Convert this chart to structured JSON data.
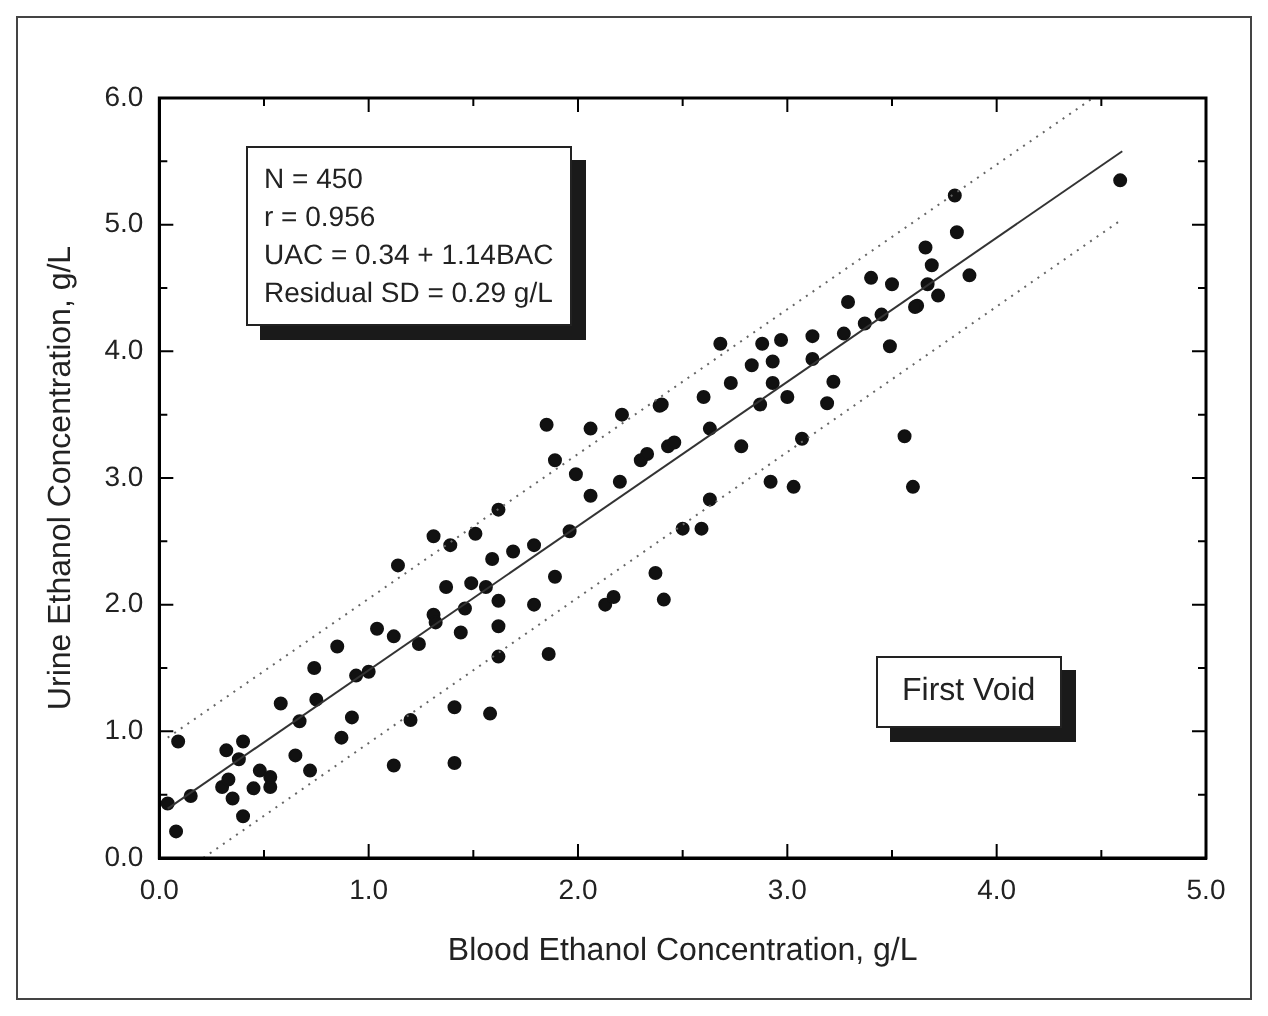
{
  "chart_data": {
    "type": "scatter",
    "xlabel": "Blood Ethanol Concentration, g/L",
    "ylabel": "Urine Ethanol Concentration, g/L",
    "annotations": [
      "N = 450\nr = 0.956\nUAC = 0.34 + 1.14BAC\nResidual SD = 0.29 g/L",
      "First Void"
    ],
    "xlim": [
      0,
      5
    ],
    "ylim": [
      0,
      6
    ],
    "xticks": [
      {
        "value": 0,
        "label": "0.0"
      },
      {
        "value": 0.5,
        "label": null
      },
      {
        "value": 1,
        "label": "1.0"
      },
      {
        "value": 1.5,
        "label": null
      },
      {
        "value": 2,
        "label": "2.0"
      },
      {
        "value": 2.5,
        "label": null
      },
      {
        "value": 3,
        "label": "3.0"
      },
      {
        "value": 3.5,
        "label": null
      },
      {
        "value": 4,
        "label": "4.0"
      },
      {
        "value": 4.5,
        "label": null
      },
      {
        "value": 5,
        "label": "5.0"
      }
    ],
    "yticks": [
      {
        "value": 0,
        "label": "0.0"
      },
      {
        "value": 0.5,
        "label": null
      },
      {
        "value": 1,
        "label": "1.0"
      },
      {
        "value": 1.5,
        "label": null
      },
      {
        "value": 2,
        "label": "2.0"
      },
      {
        "value": 2.5,
        "label": null
      },
      {
        "value": 3,
        "label": "3.0"
      },
      {
        "value": 3.5,
        "label": null
      },
      {
        "value": 4,
        "label": "4.0"
      },
      {
        "value": 4.5,
        "label": null
      },
      {
        "value": 5,
        "label": "5.0"
      },
      {
        "value": 5.5,
        "label": null
      },
      {
        "value": 6,
        "label": "6.0"
      }
    ],
    "series": [
      {
        "type": "scatter",
        "marker": "circle",
        "color": "#111111",
        "x": [
          0.04,
          0.08,
          0.09,
          0.15,
          0.32,
          0.3,
          0.35,
          0.4,
          0.4,
          0.48,
          0.53,
          0.53,
          0.58,
          0.65,
          0.67,
          0.74,
          0.72,
          0.75,
          0.87,
          0.85,
          0.92,
          0.94,
          1.04,
          1.0,
          1.12,
          1.14,
          1.2,
          1.24,
          1.31,
          1.39,
          1.41,
          1.41,
          1.31,
          1.37,
          1.44,
          1.51,
          1.58,
          1.59,
          1.62,
          1.85,
          2.06,
          2.21,
          2.39,
          1.62,
          1.89,
          1.79,
          1.86,
          1.62,
          1.62,
          2.13,
          2.17,
          2.37,
          2.41,
          1.89,
          1.49,
          1.79,
          1.96,
          2.06,
          2.2,
          2.3,
          2.43,
          1.99,
          1.46,
          1.32,
          1.12,
          1.69,
          1.56,
          2.68,
          2.88,
          2.97,
          3.12,
          3.29,
          3.4,
          3.5,
          3.66,
          3.67,
          3.62,
          3.49,
          3.27,
          3.37,
          3.22,
          3.19,
          3.07,
          2.92,
          3.03,
          3.56,
          3.6,
          2.5,
          2.59,
          2.63,
          2.78,
          2.87,
          2.93,
          3.0,
          2.73,
          2.6,
          2.4,
          2.63,
          2.46,
          2.33,
          2.83,
          2.93,
          3.12,
          3.8,
          3.81,
          4.59,
          3.69,
          3.87,
          3.72,
          3.61,
          3.45,
          0.33,
          0.38,
          0.45
        ],
        "values": [
          0.43,
          0.21,
          0.92,
          0.49,
          0.85,
          0.56,
          0.47,
          0.33,
          0.92,
          0.69,
          0.56,
          0.64,
          1.22,
          0.81,
          1.08,
          1.5,
          0.69,
          1.25,
          0.95,
          1.67,
          1.11,
          1.44,
          1.81,
          1.47,
          0.73,
          2.31,
          1.09,
          1.69,
          2.54,
          2.47,
          0.75,
          1.19,
          1.92,
          2.14,
          1.78,
          2.56,
          1.14,
          2.36,
          2.03,
          3.42,
          3.39,
          3.5,
          3.57,
          2.75,
          3.14,
          2.0,
          1.61,
          1.59,
          1.83,
          2.0,
          2.06,
          2.25,
          2.04,
          2.22,
          2.17,
          2.47,
          2.58,
          2.86,
          2.97,
          3.14,
          3.25,
          3.03,
          1.97,
          1.86,
          1.75,
          2.42,
          2.14,
          4.06,
          4.06,
          4.09,
          4.12,
          4.39,
          4.58,
          4.53,
          4.82,
          4.53,
          4.36,
          4.04,
          4.14,
          4.22,
          3.76,
          3.59,
          3.31,
          2.97,
          2.93,
          3.33,
          2.93,
          2.6,
          2.6,
          2.83,
          3.25,
          3.58,
          3.75,
          3.64,
          3.75,
          3.64,
          3.58,
          3.39,
          3.28,
          3.19,
          3.89,
          3.92,
          3.94,
          5.23,
          4.94,
          5.35,
          4.68,
          4.6,
          4.44,
          4.35,
          4.29,
          0.62,
          0.78,
          0.55
        ]
      },
      {
        "type": "line",
        "marker": "none",
        "color": "#333333",
        "line_style": "solid",
        "x": [
          0.04,
          4.6
        ],
        "values": [
          0.39,
          5.58
        ]
      },
      {
        "type": "line",
        "marker": "none",
        "color": "#666666",
        "line_style": "dotted",
        "x": [
          0.04,
          4.46
        ],
        "values": [
          0.95,
          6.0
        ]
      },
      {
        "type": "line",
        "marker": "none",
        "color": "#666666",
        "line_style": "dotted",
        "x": [
          0.21,
          4.58
        ],
        "values": [
          0.0,
          5.02
        ]
      }
    ]
  }
}
